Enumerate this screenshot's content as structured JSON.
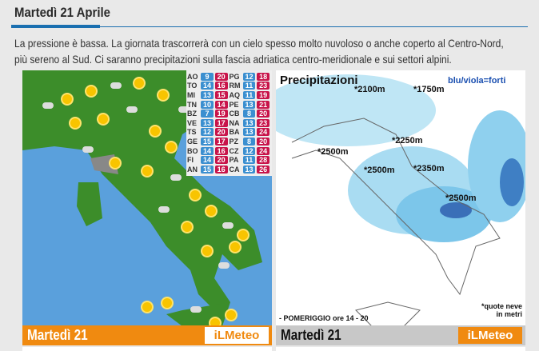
{
  "header": {
    "title": "Martedì 21 Aprile",
    "description_line1": "La pressione è bassa. La giornata trascorrerà con un cielo spesso molto nuvoloso o anche coperto al Centro-Nord,",
    "description_line2": "più sereno al Sud. Ci saranno precipitazioni sulla fascia adriatica centro-meridionale e sui settori alpini."
  },
  "colors": {
    "accent": "#1a6fb0",
    "min_temp": "#3b8fd0",
    "max_temp": "#c8144a",
    "brand": "#f08a10"
  },
  "forecast_map": {
    "day_label": "Martedì 21",
    "logo": "iLMeteo",
    "temperatures": [
      {
        "city": "AO",
        "min": "9",
        "max": "20",
        "city2": "PG",
        "min2": "12",
        "max2": "18"
      },
      {
        "city": "TO",
        "min": "14",
        "max": "16",
        "city2": "RM",
        "min2": "11",
        "max2": "23"
      },
      {
        "city": "MI",
        "min": "13",
        "max": "15",
        "city2": "AQ",
        "min2": "11",
        "max2": "19"
      },
      {
        "city": "TN",
        "min": "10",
        "max": "14",
        "city2": "PE",
        "min2": "13",
        "max2": "21"
      },
      {
        "city": "BZ",
        "min": "7",
        "max": "19",
        "city2": "CB",
        "min2": "8",
        "max2": "20"
      },
      {
        "city": "VE",
        "min": "13",
        "max": "17",
        "city2": "NA",
        "min2": "13",
        "max2": "23"
      },
      {
        "city": "TS",
        "min": "12",
        "max": "20",
        "city2": "BA",
        "min2": "13",
        "max2": "24"
      },
      {
        "city": "GE",
        "min": "15",
        "max": "17",
        "city2": "PZ",
        "min2": "8",
        "max2": "20"
      },
      {
        "city": "BO",
        "min": "14",
        "max": "16",
        "city2": "CZ",
        "min2": "12",
        "max2": "24"
      },
      {
        "city": "FI",
        "min": "14",
        "max": "20",
        "city2": "PA",
        "min2": "11",
        "max2": "28"
      },
      {
        "city": "AN",
        "min": "15",
        "max": "16",
        "city2": "CA",
        "min2": "13",
        "max2": "26"
      }
    ]
  },
  "precip_map": {
    "title": "Precipitazioni",
    "legend": "blu/viola=forti",
    "period": "- POMERIGGIO ore 14 - 20",
    "note1": "*quote neve",
    "note2": "in metri",
    "day_label": "Martedì 21",
    "logo": "iLMeteo",
    "snow_levels": [
      "*2100m",
      "*1750m",
      "*2250m",
      "*2500m",
      "*2500m",
      "*2350m",
      "*2500m"
    ]
  }
}
